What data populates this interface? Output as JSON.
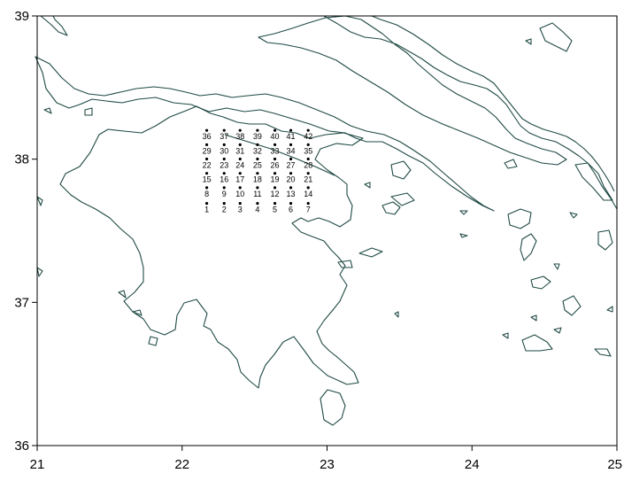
{
  "map": {
    "x_range": [
      21,
      25
    ],
    "y_range": [
      36,
      39
    ],
    "x_ticks": [
      "21",
      "22",
      "23",
      "24",
      "25"
    ],
    "y_ticks": [
      "36",
      "37",
      "38",
      "39"
    ],
    "x_tick_values": [
      21,
      22,
      23,
      24,
      25
    ],
    "y_tick_values": [
      36,
      37,
      38,
      39
    ],
    "coastline_color": "#1f4a45"
  },
  "grid": {
    "lons": [
      22.17,
      22.29,
      22.4,
      22.52,
      22.64,
      22.75,
      22.87
    ],
    "lats": [
      37.66,
      37.77,
      37.87,
      37.97,
      38.07,
      38.17
    ],
    "labels": [
      "1",
      "2",
      "3",
      "4",
      "5",
      "6",
      "7",
      "8",
      "9",
      "10",
      "11",
      "12",
      "13",
      "14",
      "15",
      "16",
      "17",
      "18",
      "19",
      "20",
      "21",
      "22",
      "23",
      "24",
      "25",
      "26",
      "27",
      "28",
      "29",
      "30",
      "31",
      "32",
      "33",
      "34",
      "35",
      "36",
      "37",
      "38",
      "39",
      "40",
      "41",
      "42"
    ]
  }
}
